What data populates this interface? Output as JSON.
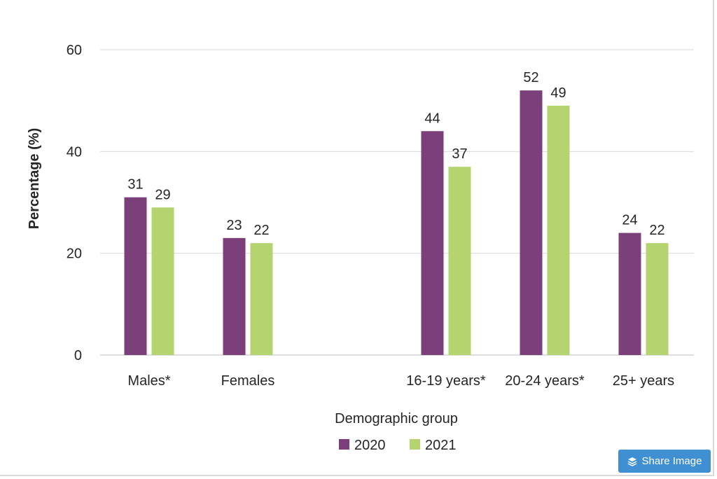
{
  "chart_data": {
    "type": "bar",
    "categories": [
      "Males*",
      "Females",
      "16-19 years*",
      "20-24 years*",
      "25+ years"
    ],
    "series": [
      {
        "name": "2020",
        "values": [
          31,
          23,
          44,
          52,
          24
        ],
        "color": "#7b3f7a"
      },
      {
        "name": "2021",
        "values": [
          29,
          22,
          37,
          49,
          22
        ],
        "color": "#b5d46f"
      }
    ],
    "xlabel": "Demographic group",
    "ylabel": "Percentage (%)",
    "ylim": [
      0,
      60
    ],
    "yticks": [
      "0",
      "20",
      "40",
      "60"
    ],
    "grid": true,
    "legend_position": "bottom"
  },
  "share_button": {
    "label": "Share Image",
    "icon": "layers-icon"
  }
}
